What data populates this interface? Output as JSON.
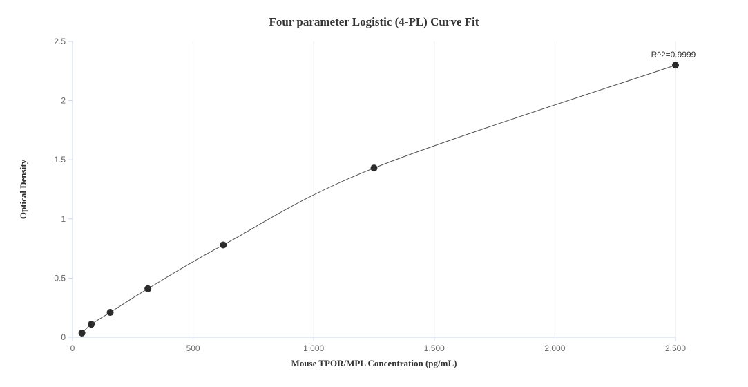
{
  "chart_data": {
    "type": "scatter",
    "title": "Four parameter Logistic (4-PL) Curve Fit",
    "xlabel": "Mouse TPOR/MPL Concentration (pg/mL)",
    "ylabel": "Optical Density",
    "annotation": "R^2=0.9999",
    "x": [
      39.06,
      78.13,
      156.25,
      312.5,
      625,
      1250,
      2500
    ],
    "y": [
      0.035,
      0.11,
      0.21,
      0.41,
      0.78,
      1.43,
      2.3
    ],
    "xlim": [
      0,
      2500
    ],
    "ylim": [
      0,
      2.5
    ],
    "x_ticks": [
      0,
      500,
      1000,
      1500,
      2000,
      2500
    ],
    "x_tick_labels": [
      "0",
      "500",
      "1,000",
      "1,500",
      "2,000",
      "2,500"
    ],
    "y_ticks": [
      0,
      0.5,
      1,
      1.5,
      2,
      2.5
    ],
    "y_tick_labels": [
      "0",
      "0.5",
      "1",
      "1.5",
      "2",
      "2.5"
    ],
    "legend": "none",
    "grid": "vertical-only",
    "colors": {
      "point": "#2b2b2b",
      "fit_line": "#4d4d4d",
      "grid_line": "#e6e6e6",
      "axis_line": "#ccd6eb",
      "tick_label": "#666666",
      "title_text": "#333333",
      "background": "#ffffff"
    }
  }
}
